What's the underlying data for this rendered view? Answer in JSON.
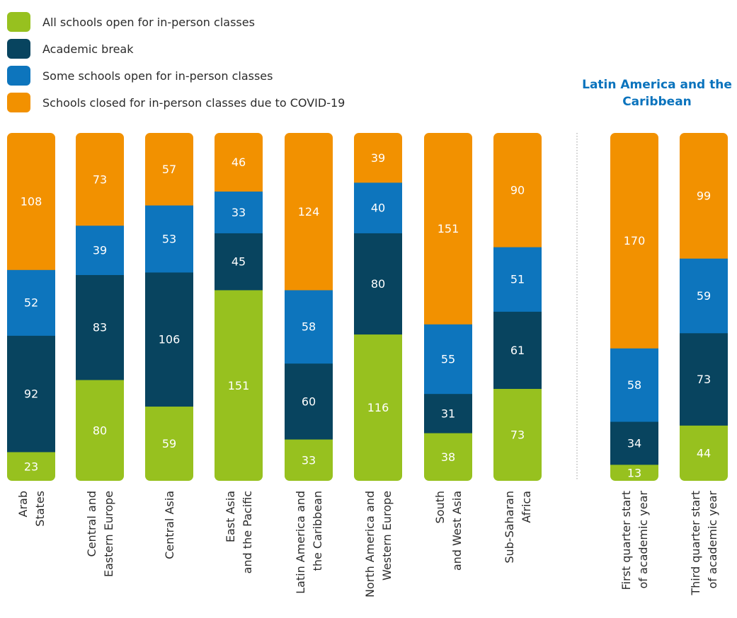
{
  "legend": {
    "items": [
      {
        "label": "All schools open for in-person classes",
        "color": "#97c11f"
      },
      {
        "label": "Academic break",
        "color": "#08445f"
      },
      {
        "label": "Some schools open for in-person classes",
        "color": "#0d75bd"
      },
      {
        "label": "Schools closed for in-person classes due to COVID-19",
        "color": "#f29100"
      }
    ]
  },
  "region_title": "Latin America and the Caribbean",
  "chart_data": [
    {
      "type": "bar",
      "stacked": true,
      "categories": [
        "Arab States",
        "Central and Eastern Europe",
        "Central Asia",
        "East Asia and the Pacific",
        "Latin America and the Caribbean",
        "North America and Western Europe",
        "South and West Asia",
        "Sub-Saharan Africa"
      ],
      "category_lines": [
        [
          "Arab",
          "States"
        ],
        [
          "Central and",
          "Eastern Europe"
        ],
        [
          "Central Asia"
        ],
        [
          "East Asia",
          "and the Pacific"
        ],
        [
          "Latin America and",
          "the Caribbean"
        ],
        [
          "North America and",
          "Western Europe"
        ],
        [
          "South",
          "and West Asia"
        ],
        [
          "Sub-Saharan",
          "Africa"
        ]
      ],
      "series": [
        {
          "name": "All schools open for in-person classes",
          "values": [
            23,
            80,
            59,
            151,
            33,
            116,
            38,
            73
          ]
        },
        {
          "name": "Academic break",
          "values": [
            92,
            83,
            106,
            45,
            60,
            80,
            31,
            61
          ]
        },
        {
          "name": "Some schools open for in-person classes",
          "values": [
            52,
            39,
            53,
            33,
            58,
            40,
            55,
            51
          ]
        },
        {
          "name": "Schools closed for in-person classes due to COVID-19",
          "values": [
            108,
            73,
            57,
            46,
            124,
            39,
            151,
            90
          ]
        }
      ],
      "xlabel": "",
      "ylabel": "",
      "grid": false
    },
    {
      "type": "bar",
      "stacked": true,
      "title": "Latin America and the Caribbean",
      "categories": [
        "First quarter start of academic year",
        "Third quarter start of academic year"
      ],
      "category_lines": [
        [
          "First quarter start",
          "of academic year"
        ],
        [
          "Third quarter start",
          "of academic year"
        ]
      ],
      "series": [
        {
          "name": "All schools open for in-person classes",
          "values": [
            13,
            44
          ]
        },
        {
          "name": "Academic break",
          "values": [
            34,
            73
          ]
        },
        {
          "name": "Some schools open for in-person classes",
          "values": [
            58,
            59
          ]
        },
        {
          "name": "Schools closed for in-person classes due to COVID-19",
          "values": [
            170,
            99
          ]
        }
      ],
      "xlabel": "",
      "ylabel": "",
      "grid": false
    }
  ]
}
